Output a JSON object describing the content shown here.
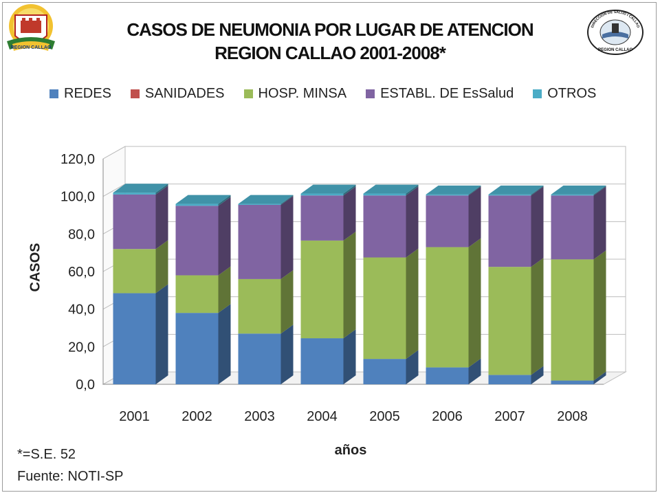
{
  "header": {
    "title_line1": "CASOS DE NEUMONIA POR LUGAR DE ATENCION",
    "title_line2": "REGION CALLAO 2001-2008*"
  },
  "logos": {
    "left": {
      "text": "REGION CALLAO"
    },
    "right": {
      "text_top": "DIRECCION DE SALUD I CALLAO",
      "text_bottom": "REGION CALLAO"
    }
  },
  "notes": {
    "se": "*=S.E. 52",
    "source": "Fuente: NOTI-SP"
  },
  "colors": {
    "REDES": "#4f81bd",
    "SANIDADES": "#c0504d",
    "HOSP. MINSA": "#9bbb59",
    "ESTABL. DE EsSalud": "#8064a2",
    "OTROS": "#4bacc6"
  },
  "chart_data": {
    "type": "bar",
    "stacked": true,
    "three_d": true,
    "title": "CASOS DE NEUMONIA POR LUGAR DE ATENCION REGION CALLAO 2001-2008*",
    "xlabel": "años",
    "ylabel": "CASOS",
    "ylim": [
      0,
      120
    ],
    "yticks": [
      "0,0",
      "20,0",
      "40,0",
      "60,0",
      "80,0",
      "100,0",
      "120,0"
    ],
    "grid": true,
    "legend_position": "top",
    "categories": [
      "2001",
      "2002",
      "2003",
      "2004",
      "2005",
      "2006",
      "2007",
      "2008"
    ],
    "series": [
      {
        "name": "REDES",
        "values": [
          48.5,
          38.0,
          27.0,
          24.5,
          13.5,
          9.0,
          5.0,
          2.0
        ]
      },
      {
        "name": "SANIDADES",
        "values": [
          0.0,
          0.0,
          0.0,
          0.0,
          0.0,
          0.0,
          0.0,
          0.0
        ]
      },
      {
        "name": "HOSP. MINSA",
        "values": [
          23.5,
          20.0,
          29.0,
          52.0,
          54.0,
          64.0,
          57.5,
          64.5
        ]
      },
      {
        "name": "ESTABL. DE EsSalud",
        "values": [
          29.0,
          37.0,
          39.5,
          24.0,
          33.0,
          27.5,
          38.0,
          34.0
        ]
      },
      {
        "name": "OTROS",
        "values": [
          1.0,
          1.0,
          0.5,
          1.0,
          1.0,
          0.5,
          0.5,
          0.5
        ]
      }
    ]
  }
}
